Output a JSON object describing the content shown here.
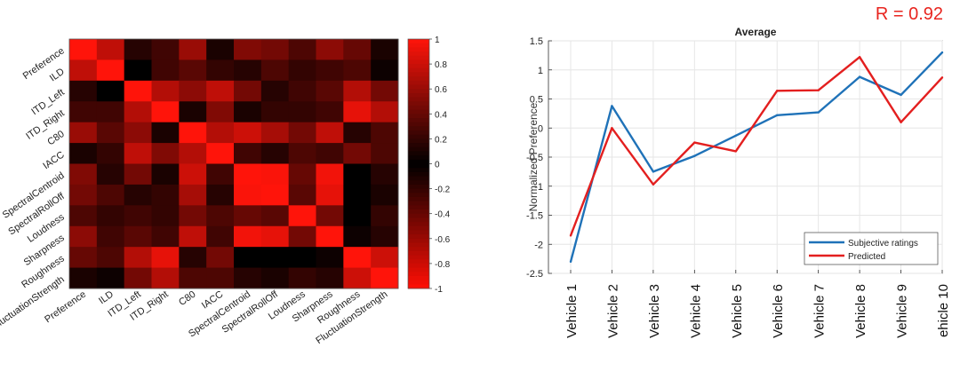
{
  "r_label": "R = 0.92",
  "colors": {
    "accent_red": "#e8251f",
    "series_blue": "#1f72b8",
    "series_red": "#e31f1f"
  },
  "chart_data": [
    {
      "type": "heatmap",
      "title": "",
      "labels": [
        "Preference",
        "ILD",
        "ITD_Left",
        "ITD_Right",
        "C80",
        "IACC",
        "SpectralCentroid",
        "SpectralRollOff",
        "Loudness",
        "Sharpness",
        "Roughness",
        "FluctuationStrength"
      ],
      "colorbar": {
        "min": -1,
        "max": 1,
        "ticks": [
          "1",
          "0.8",
          "0.6",
          "0.4",
          "0.2",
          "0",
          "-0.2",
          "-0.4",
          "-0.6",
          "-0.8",
          "-1"
        ]
      },
      "matrix": [
        [
          1.0,
          0.75,
          0.15,
          0.25,
          0.6,
          0.1,
          0.5,
          0.45,
          0.3,
          0.55,
          0.4,
          0.1
        ],
        [
          0.75,
          1.0,
          0.0,
          0.25,
          0.35,
          0.2,
          0.15,
          0.3,
          0.2,
          0.25,
          0.3,
          0.05
        ],
        [
          0.15,
          0.0,
          1.0,
          0.7,
          0.55,
          0.75,
          0.45,
          0.15,
          0.25,
          0.35,
          0.7,
          0.45
        ],
        [
          0.25,
          0.25,
          0.7,
          1.0,
          0.1,
          0.5,
          0.1,
          0.2,
          0.2,
          0.25,
          0.9,
          0.7
        ],
        [
          0.6,
          0.35,
          0.55,
          0.1,
          1.0,
          0.7,
          0.8,
          0.65,
          0.45,
          0.75,
          0.15,
          0.3
        ],
        [
          0.1,
          0.2,
          0.75,
          0.5,
          0.7,
          1.0,
          0.25,
          0.15,
          0.3,
          0.25,
          0.45,
          0.3
        ],
        [
          0.5,
          0.15,
          0.45,
          0.1,
          0.8,
          0.25,
          1.0,
          0.98,
          0.4,
          0.95,
          0.0,
          0.15
        ],
        [
          0.45,
          0.3,
          0.15,
          0.2,
          0.65,
          0.15,
          0.98,
          1.0,
          0.35,
          0.9,
          0.0,
          0.1
        ],
        [
          0.3,
          0.2,
          0.25,
          0.2,
          0.45,
          0.3,
          0.4,
          0.35,
          1.0,
          0.45,
          0.0,
          0.2
        ],
        [
          0.55,
          0.25,
          0.35,
          0.25,
          0.75,
          0.25,
          0.95,
          0.9,
          0.45,
          1.0,
          0.05,
          0.15
        ],
        [
          0.4,
          0.3,
          0.7,
          0.9,
          0.15,
          0.45,
          0.0,
          0.0,
          0.0,
          0.05,
          1.0,
          0.8
        ],
        [
          0.1,
          0.05,
          0.45,
          0.7,
          0.3,
          0.3,
          0.15,
          0.1,
          0.2,
          0.15,
          0.8,
          1.0
        ]
      ]
    },
    {
      "type": "line",
      "title": "Average",
      "xlabel": "",
      "ylabel": "Normalized Preference",
      "ylim": [
        -2.5,
        1.5
      ],
      "yticks": [
        "1.5",
        "1",
        "0.5",
        "0",
        "-0.5",
        "-1",
        "-1.5",
        "-2",
        "-2.5"
      ],
      "ytick_values": [
        1.5,
        1,
        0.5,
        0,
        -0.5,
        -1,
        -1.5,
        -2,
        -2.5
      ],
      "categories": [
        "Vehicle 1",
        "Vehicle 2",
        "Vehicle 3",
        "Vehicle 4",
        "Vehicle 5",
        "Vehicle 6",
        "Vehicle 7",
        "Vehicle 8",
        "Vehicle 9",
        "ehicle 10"
      ],
      "series": [
        {
          "name": "Subjective ratings",
          "color": "#1f72b8",
          "values": [
            -2.3,
            0.38,
            -0.75,
            -0.48,
            -0.13,
            0.22,
            0.27,
            0.88,
            0.57,
            1.3
          ]
        },
        {
          "name": "Predicted",
          "color": "#e31f1f",
          "values": [
            -1.85,
            0.0,
            -0.97,
            -0.25,
            -0.4,
            0.64,
            0.65,
            1.22,
            0.1,
            0.87
          ]
        }
      ],
      "legend_position": "bottom-right"
    }
  ]
}
